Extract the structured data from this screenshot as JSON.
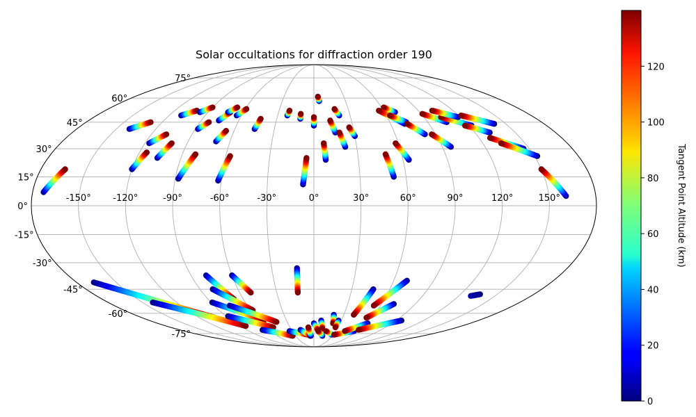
{
  "chart_data": {
    "type": "scatter",
    "projection": "mollweide",
    "title": "Solar occultations for diffraction order 190",
    "grid": true,
    "lon_ticks": [
      {
        "value": -150,
        "label": "-150°"
      },
      {
        "value": -120,
        "label": "-120°"
      },
      {
        "value": -90,
        "label": "-90°"
      },
      {
        "value": -60,
        "label": "-60°"
      },
      {
        "value": -30,
        "label": "-30°"
      },
      {
        "value": 0,
        "label": "0°"
      },
      {
        "value": 30,
        "label": "30°"
      },
      {
        "value": 60,
        "label": "60°"
      },
      {
        "value": 90,
        "label": "90°"
      },
      {
        "value": 120,
        "label": "120°"
      },
      {
        "value": 150,
        "label": "150°"
      }
    ],
    "lat_ticks": [
      {
        "value": 75,
        "label": "75°"
      },
      {
        "value": 60,
        "label": "60°"
      },
      {
        "value": 45,
        "label": "45°"
      },
      {
        "value": 30,
        "label": "30°"
      },
      {
        "value": 15,
        "label": "15°"
      },
      {
        "value": 0,
        "label": "0°"
      },
      {
        "value": -15,
        "label": "-15°"
      },
      {
        "value": -30,
        "label": "-30°"
      },
      {
        "value": -45,
        "label": "-45°"
      },
      {
        "value": -60,
        "label": "-60°"
      },
      {
        "value": -75,
        "label": "-75°"
      }
    ],
    "colorbar": {
      "label": "Tangent Point Altitude (km)",
      "colormap": "jet",
      "range": [
        0,
        140
      ],
      "ticks": [
        {
          "value": 0,
          "label": "0"
        },
        {
          "value": 20,
          "label": "20"
        },
        {
          "value": 40,
          "label": "40"
        },
        {
          "value": 60,
          "label": "60"
        },
        {
          "value": 80,
          "label": "80"
        },
        {
          "value": 100,
          "label": "100"
        },
        {
          "value": 120,
          "label": "120"
        }
      ]
    },
    "tracks": [
      {
        "lon0": -173,
        "lat0": 7,
        "lon1": -164,
        "lat1": 19,
        "alt0": 0,
        "alt1": 140
      },
      {
        "lon0": -140,
        "lat0": 41,
        "lon1": -129,
        "lat1": 45,
        "alt0": 0,
        "alt1": 140
      },
      {
        "lon0": -120,
        "lat0": 19,
        "lon1": -115,
        "lat1": 28,
        "alt0": 0,
        "alt1": 140
      },
      {
        "lon0": -117,
        "lat0": 33,
        "lon1": -109,
        "lat1": 38,
        "alt0": 0,
        "alt1": 140
      },
      {
        "lon0": -106,
        "lat0": 25,
        "lon1": -101,
        "lat1": 33,
        "alt0": 0,
        "alt1": 140
      },
      {
        "lon0": -110,
        "lat0": 49,
        "lon1": -101,
        "lat1": 52,
        "alt0": 0,
        "alt1": 140
      },
      {
        "lon0": -97,
        "lat0": 51,
        "lon1": -90,
        "lat1": 54,
        "alt0": 0,
        "alt1": 140
      },
      {
        "lon0": -88,
        "lat0": 14,
        "lon1": -81,
        "lat1": 27,
        "alt0": 0,
        "alt1": 140
      },
      {
        "lon0": -88,
        "lat0": 41,
        "lon1": -83,
        "lat1": 45,
        "alt0": 0,
        "alt1": 140
      },
      {
        "lon0": -76,
        "lat0": 46,
        "lon1": -71,
        "lat1": 51,
        "alt0": 0,
        "alt1": 140
      },
      {
        "lon0": -73,
        "lat0": 51,
        "lon1": -68,
        "lat1": 54,
        "alt0": 0,
        "alt1": 140
      },
      {
        "lon0": -70,
        "lat0": 34,
        "lon1": -66,
        "lat1": 40,
        "alt0": 0,
        "alt1": 140
      },
      {
        "lon0": -64,
        "lat0": 49,
        "lon1": -59,
        "lat1": 53,
        "alt0": 0,
        "alt1": 140
      },
      {
        "lon0": -62,
        "lat0": 13,
        "lon1": -57,
        "lat1": 26,
        "alt0": 0,
        "alt1": 140
      },
      {
        "lon0": -45,
        "lat0": 41,
        "lon1": -43,
        "lat1": 47,
        "alt0": 0,
        "alt1": 140
      },
      {
        "lon0": -22,
        "lat0": 49,
        "lon1": -21,
        "lat1": 52,
        "alt0": 0,
        "alt1": 140
      },
      {
        "lon0": -11,
        "lat0": 47,
        "lon1": -11,
        "lat1": 50,
        "alt0": 0,
        "alt1": 140
      },
      {
        "lon0": -7,
        "lat0": 11,
        "lon1": -5,
        "lat1": 25,
        "alt0": 0,
        "alt1": 140
      },
      {
        "lon0": 0,
        "lat0": 43,
        "lon1": 0,
        "lat1": 48,
        "alt0": 0,
        "alt1": 140
      },
      {
        "lon0": 5,
        "lat0": 58,
        "lon1": 4,
        "lat1": 61,
        "alt0": 0,
        "alt1": 140
      },
      {
        "lon0": 8,
        "lat0": 24,
        "lon1": 7,
        "lat1": 33,
        "alt0": 0,
        "alt1": 140
      },
      {
        "lon0": 16,
        "lat0": 39,
        "lon1": 13,
        "lat1": 46,
        "alt0": 0,
        "alt1": 140
      },
      {
        "lon0": 21,
        "lat0": 49,
        "lon1": 18,
        "lat1": 53,
        "alt0": 0,
        "alt1": 140
      },
      {
        "lon0": 22,
        "lat0": 31,
        "lon1": 19,
        "lat1": 39,
        "alt0": 0,
        "alt1": 140
      },
      {
        "lon0": 30,
        "lat0": 37,
        "lon1": 27,
        "lat1": 42,
        "alt0": 0,
        "alt1": 140
      },
      {
        "lon0": 52,
        "lat0": 15,
        "lon1": 49,
        "lat1": 27,
        "alt0": 0,
        "alt1": 140
      },
      {
        "lon0": 64,
        "lat0": 24,
        "lon1": 58,
        "lat1": 33,
        "alt0": 0,
        "alt1": 140
      },
      {
        "lon0": 69,
        "lat0": 51,
        "lon1": 62,
        "lat1": 54,
        "alt0": 0,
        "alt1": 140
      },
      {
        "lon0": 71,
        "lat0": 44,
        "lon1": 56,
        "lat1": 52,
        "alt0": 0,
        "alt1": 140
      },
      {
        "lon0": 73,
        "lat0": 45,
        "lon1": 63,
        "lat1": 49,
        "alt0": 0,
        "alt1": 140
      },
      {
        "lon0": 82,
        "lat0": 38,
        "lon1": 73,
        "lat1": 44,
        "alt0": 0,
        "alt1": 140
      },
      {
        "lon0": 96,
        "lat0": 31,
        "lon1": 87,
        "lat1": 38,
        "alt0": 0,
        "alt1": 140
      },
      {
        "lon0": 105,
        "lat0": 45,
        "lon1": 91,
        "lat1": 50,
        "alt0": 0,
        "alt1": 140
      },
      {
        "lon0": 122,
        "lat0": 43,
        "lon1": 104,
        "lat1": 48,
        "alt0": 0,
        "alt1": 140
      },
      {
        "lon0": 118,
        "lat0": 48,
        "lon1": 102,
        "lat1": 52,
        "alt0": 0,
        "alt1": 140
      },
      {
        "lon0": 141,
        "lat0": 44,
        "lon1": 122,
        "lat1": 49,
        "alt0": 0,
        "alt1": 140
      },
      {
        "lon0": 131,
        "lat0": 39,
        "lon1": 117,
        "lat1": 43,
        "alt0": 0,
        "alt1": 140
      },
      {
        "lon0": 146,
        "lat0": 30,
        "lon1": 128,
        "lat1": 36,
        "alt0": 0,
        "alt1": 140
      },
      {
        "lon0": 152,
        "lat0": 26,
        "lon1": 133,
        "lat1": 33,
        "alt0": 0,
        "alt1": 140
      },
      {
        "lon0": 161,
        "lat0": 5,
        "lon1": 150,
        "lat1": 19,
        "alt0": 0,
        "alt1": 140
      },
      {
        "lon0": -167,
        "lat0": -41,
        "lon1": -104,
        "lat1": -63,
        "alt0": 0,
        "alt1": 140
      },
      {
        "lon0": -141,
        "lat0": -53,
        "lon1": -83,
        "lat1": -69,
        "alt0": 0,
        "alt1": 140
      },
      {
        "lon0": -79,
        "lat0": -37,
        "lon1": -68,
        "lat1": -51,
        "alt0": 0,
        "alt1": 140
      },
      {
        "lon0": -80,
        "lat0": -45,
        "lon1": -58,
        "lat1": -58,
        "alt0": 0,
        "alt1": 140
      },
      {
        "lon0": -89,
        "lat0": -53,
        "lon1": -55,
        "lat1": -65,
        "alt0": 0,
        "alt1": 140
      },
      {
        "lon0": -60,
        "lat0": -37,
        "lon1": -51,
        "lat1": -47,
        "alt0": 0,
        "alt1": 140
      },
      {
        "lon0": -76,
        "lat0": -55,
        "lon1": -42,
        "lat1": -66,
        "alt0": 0,
        "alt1": 140
      },
      {
        "lon0": -88,
        "lat0": -62,
        "lon1": -51,
        "lat1": -70,
        "alt0": 0,
        "alt1": 140
      },
      {
        "lon0": -69,
        "lat0": -72,
        "lon1": -35,
        "lat1": -77,
        "alt0": 0,
        "alt1": 140
      },
      {
        "lon0": -12,
        "lat0": -33,
        "lon1": -13,
        "lat1": -47,
        "alt0": 0,
        "alt1": 140
      },
      {
        "lon0": -34,
        "lat0": -73,
        "lon1": -10,
        "lat1": -76,
        "alt0": 0,
        "alt1": 140
      },
      {
        "lon0": -18,
        "lat0": -72,
        "lon1": -6,
        "lat1": -77,
        "alt0": 0,
        "alt1": 140
      },
      {
        "lon0": -5,
        "lat0": -77,
        "lon1": -7,
        "lat1": -70,
        "alt0": 0,
        "alt1": 140
      },
      {
        "lon0": 0,
        "lat0": -67,
        "lon1": 5,
        "lat1": -72,
        "alt0": 0,
        "alt1": 140
      },
      {
        "lon0": 8,
        "lat0": -65,
        "lon1": 11,
        "lat1": -71,
        "alt0": 0,
        "alt1": 140
      },
      {
        "lon0": 20,
        "lat0": -61,
        "lon1": 22,
        "lat1": -67,
        "alt0": 0,
        "alt1": 140
      },
      {
        "lon0": 27,
        "lat0": -65,
        "lon1": 27,
        "lat1": -70,
        "alt0": 0,
        "alt1": 140
      },
      {
        "lon0": 14,
        "lat0": -77,
        "lon1": 6,
        "lat1": -73,
        "alt0": 0,
        "alt1": 140
      },
      {
        "lon0": 28,
        "lat0": -76,
        "lon1": 17,
        "lat1": -73,
        "alt0": 0,
        "alt1": 140
      },
      {
        "lon0": 56,
        "lat0": -73,
        "lon1": 32,
        "lat1": -76,
        "alt0": 0,
        "alt1": 140
      },
      {
        "lon0": 47,
        "lat0": -45,
        "lon1": 40,
        "lat1": -61,
        "alt0": 0,
        "alt1": 140
      },
      {
        "lon0": 70,
        "lat0": -40,
        "lon1": 54,
        "lat1": -55,
        "alt0": 0,
        "alt1": 140
      },
      {
        "lon0": 71,
        "lat0": -54,
        "lon1": 55,
        "lat1": -63,
        "alt0": 0,
        "alt1": 140
      },
      {
        "lon0": 62,
        "lat0": -67,
        "lon1": 43,
        "lat1": -73,
        "alt0": 0,
        "alt1": 140
      },
      {
        "lon0": 96,
        "lat0": -65,
        "lon1": 60,
        "lat1": -72,
        "alt0": 0,
        "alt1": 140
      },
      {
        "lon0": 136,
        "lat0": -48,
        "lon1": 130,
        "lat1": -49,
        "alt0": 0,
        "alt1": 6
      }
    ]
  }
}
